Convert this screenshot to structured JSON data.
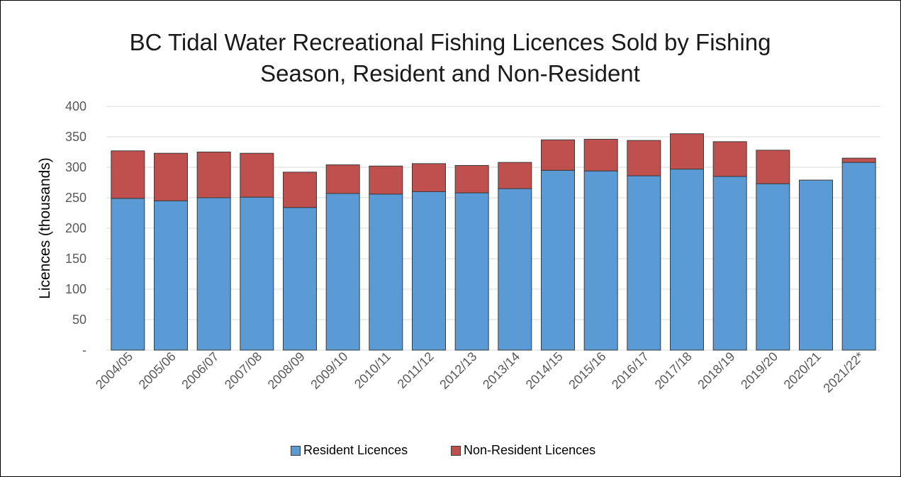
{
  "chart_data": {
    "type": "bar",
    "stacked": true,
    "title_line1": "BC Tidal Water Recreational Fishing Licences Sold by Fishing",
    "title_line2": "Season, Resident and Non-Resident",
    "xlabel": "",
    "ylabel": "Licences (thousands)",
    "ylim": [
      0,
      400
    ],
    "yticks": [
      0,
      50,
      100,
      150,
      200,
      250,
      300,
      350,
      400
    ],
    "ytick_labels": [
      "-",
      "50",
      "100",
      "150",
      "200",
      "250",
      "300",
      "350",
      "400"
    ],
    "grid": true,
    "legend_position": "bottom",
    "categories": [
      "2004/05",
      "2005/06",
      "2006/07",
      "2007/08",
      "2008/09",
      "2009/10",
      "2010/11",
      "2011/12",
      "2012/13",
      "2013/14",
      "2014/15",
      "2015/16",
      "2016/17",
      "2017/18",
      "2018/19",
      "2019/20",
      "2020/21",
      "2021/22*"
    ],
    "series": [
      {
        "name": "Resident Licences",
        "color": "#5b9bd5",
        "values": [
          249,
          245,
          250,
          251,
          234,
          257,
          256,
          260,
          258,
          265,
          295,
          294,
          286,
          297,
          285,
          273,
          279,
          308
        ]
      },
      {
        "name": "Non-Resident Licences",
        "color": "#c0504d",
        "values": [
          78,
          78,
          75,
          72,
          58,
          47,
          46,
          46,
          45,
          43,
          50,
          52,
          58,
          58,
          57,
          55,
          0,
          7
        ]
      }
    ]
  }
}
